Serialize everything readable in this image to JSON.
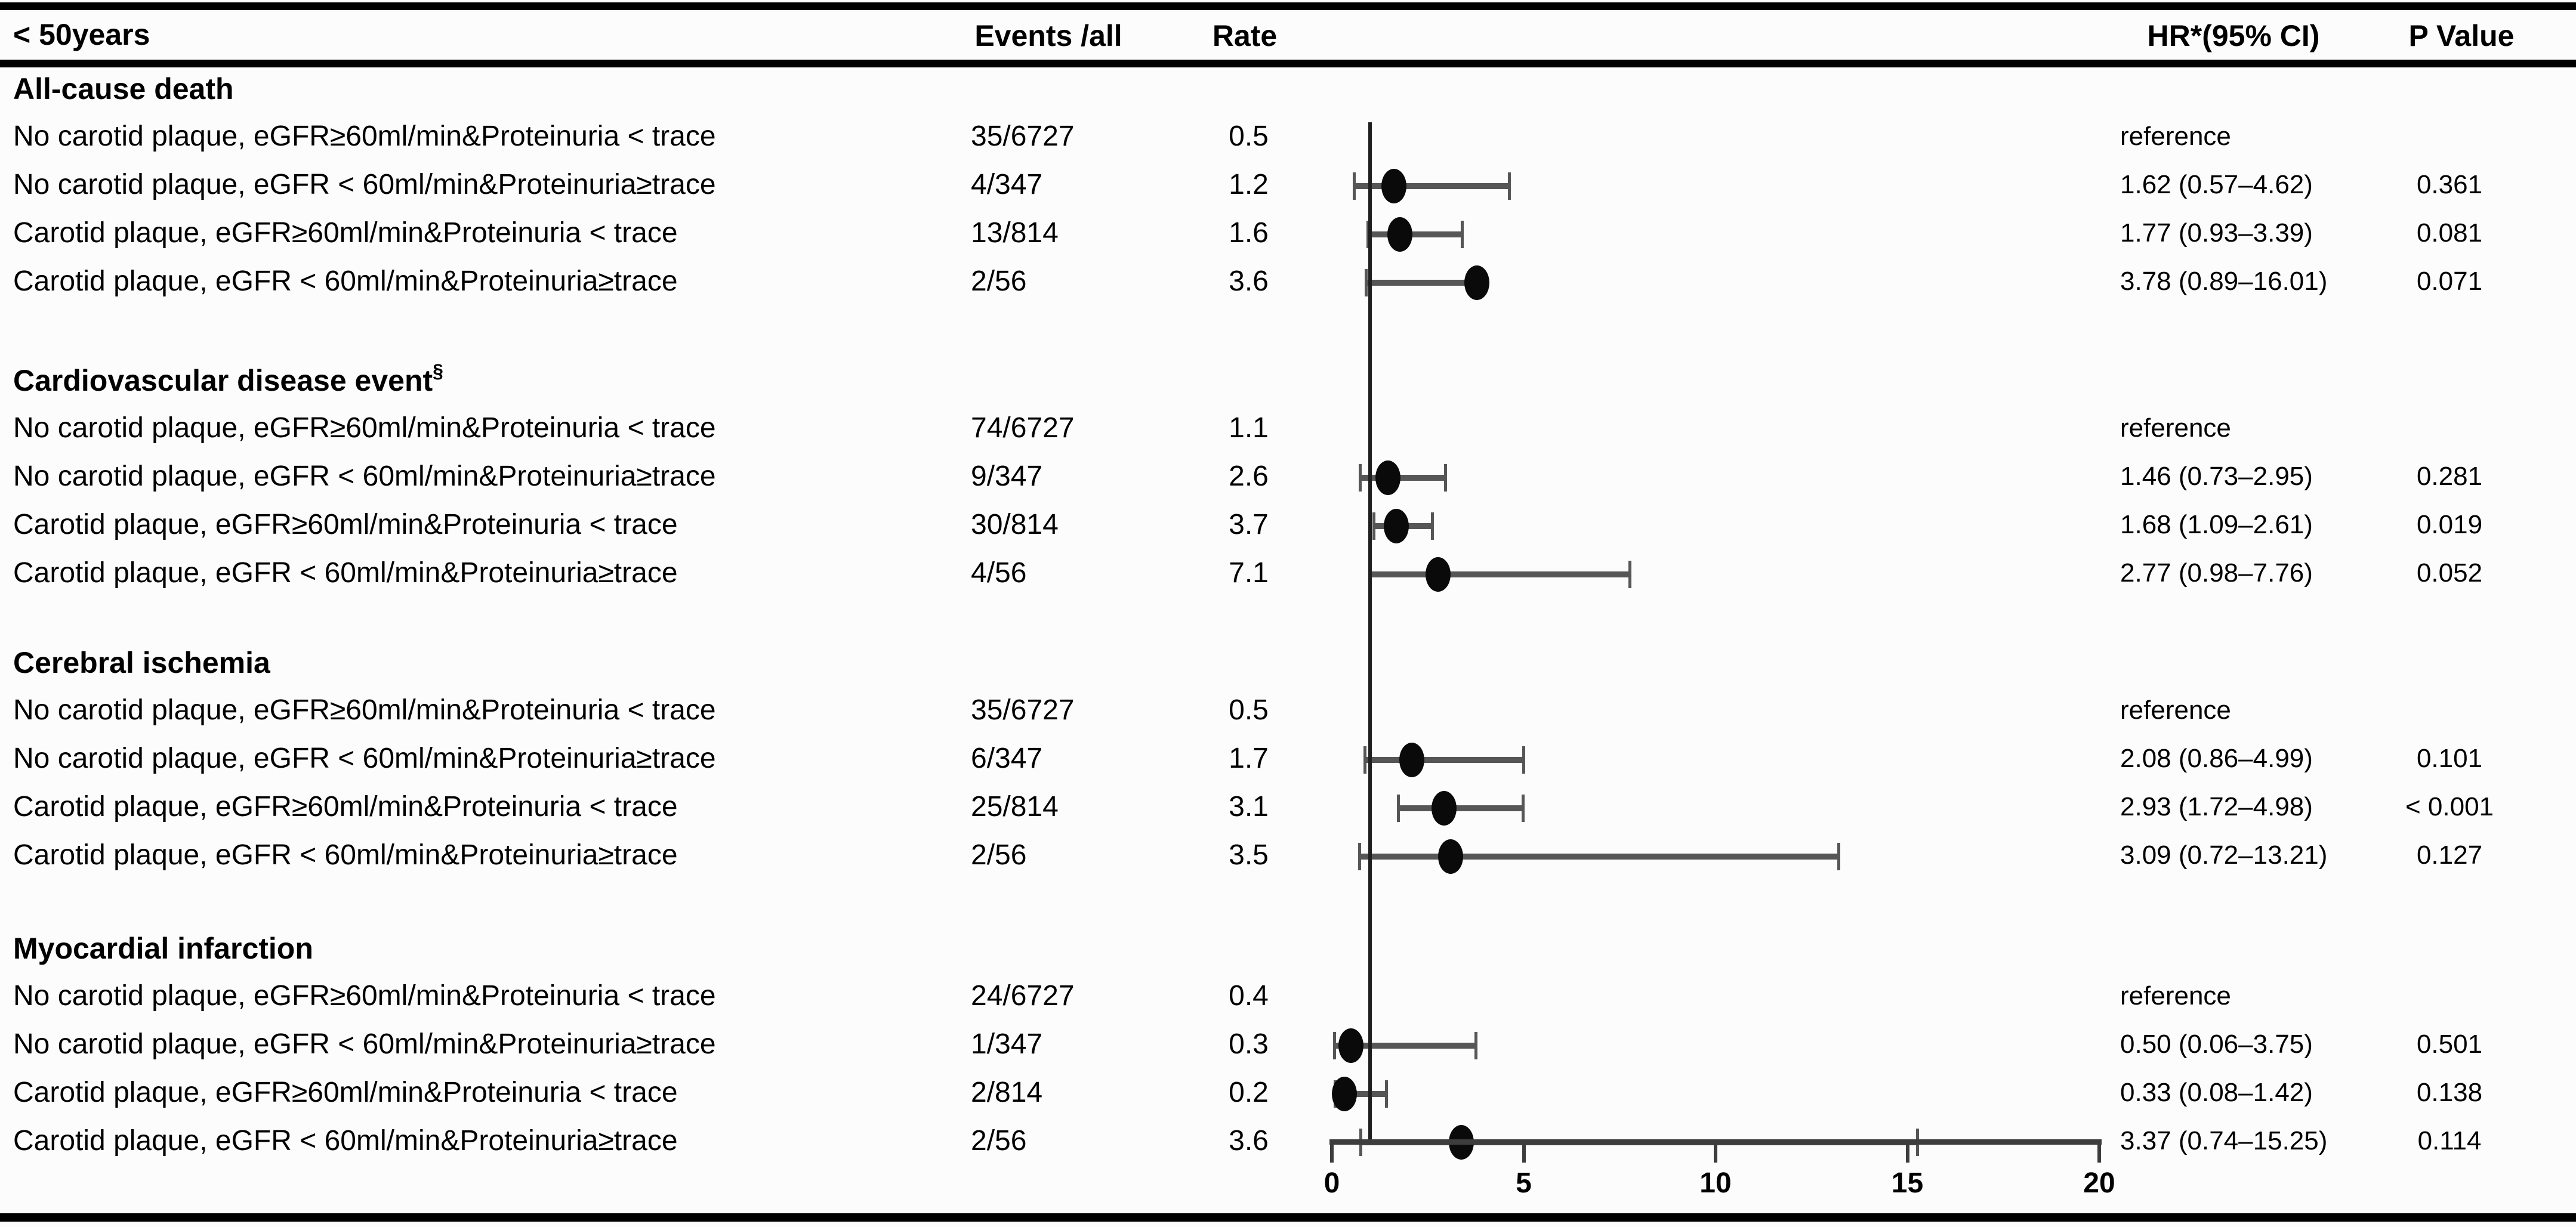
{
  "header": {
    "group_label": "< 50years",
    "events": "Events /all",
    "rate": "Rate",
    "hr": "HR*(95% CI)",
    "p": "P Value"
  },
  "colors": {
    "marker": "#0a0a0a",
    "ci_bar": "#565656",
    "axis": "#3d3d3d",
    "reference_line": "#1f1f1f",
    "rule": "#000000",
    "background": "#fcfcfc",
    "text": "#000000"
  },
  "chart_data": {
    "type": "scatter",
    "subtype": "forest-plot",
    "title": "< 50years",
    "xlabel": "",
    "ylabel": "",
    "x_axis": {
      "min": 0,
      "max": 20,
      "ticks": [
        0,
        5,
        10,
        15,
        20
      ],
      "reference_line_x": 1,
      "grid": false
    },
    "sections": [
      {
        "title": "All-cause death",
        "sup": "",
        "rows": [
          {
            "label": "No carotid plaque, eGFR≥60ml/min&Proteinuria < trace",
            "events_all": "35/6727",
            "rate": "0.5",
            "hr_text": "reference",
            "p": "",
            "hr": null,
            "lo": null,
            "hi": null
          },
          {
            "label": "No carotid plaque, eGFR < 60ml/min&Proteinuria≥trace",
            "events_all": "4/347",
            "rate": "1.2",
            "hr_text": "1.62 (0.57–4.62)",
            "p": "0.361",
            "hr": 1.62,
            "lo": 0.57,
            "hi": 4.62
          },
          {
            "label": "Carotid plaque, eGFR≥60ml/min&Proteinuria < trace",
            "events_all": "13/814",
            "rate": "1.6",
            "hr_text": "1.77 (0.93–3.39)",
            "p": "0.081",
            "hr": 1.77,
            "lo": 0.93,
            "hi": 3.39
          },
          {
            "label": "Carotid plaque, eGFR < 60ml/min&Proteinuria≥trace",
            "events_all": "2/56",
            "rate": "3.6",
            "hr_text": "3.78 (0.89–16.01)",
            "p": "0.071",
            "hr": 3.78,
            "lo": 0.89,
            "hi": 16.01,
            "hi_whisker_drawn": false
          }
        ]
      },
      {
        "title": "Cardiovascular disease event",
        "sup": "§",
        "rows": [
          {
            "label": "No carotid plaque, eGFR≥60ml/min&Proteinuria < trace",
            "events_all": "74/6727",
            "rate": "1.1",
            "hr_text": "reference",
            "p": "",
            "hr": null,
            "lo": null,
            "hi": null
          },
          {
            "label": "No carotid plaque, eGFR < 60ml/min&Proteinuria≥trace",
            "events_all": "9/347",
            "rate": "2.6",
            "hr_text": "1.46 (0.73–2.95)",
            "p": "0.281",
            "hr": 1.46,
            "lo": 0.73,
            "hi": 2.95
          },
          {
            "label": "Carotid plaque, eGFR≥60ml/min&Proteinuria < trace",
            "events_all": "30/814",
            "rate": "3.7",
            "hr_text": "1.68 (1.09–2.61)",
            "p": "0.019",
            "hr": 1.68,
            "lo": 1.09,
            "hi": 2.61
          },
          {
            "label": "Carotid plaque, eGFR < 60ml/min&Proteinuria≥trace",
            "events_all": "4/56",
            "rate": "7.1",
            "hr_text": "2.77 (0.98–7.76)",
            "p": "0.052",
            "hr": 2.77,
            "lo": 0.98,
            "hi": 7.76
          }
        ]
      },
      {
        "title": "Cerebral ischemia",
        "sup": "",
        "rows": [
          {
            "label": "No carotid plaque, eGFR≥60ml/min&Proteinuria < trace",
            "events_all": "35/6727",
            "rate": "0.5",
            "hr_text": "reference",
            "p": "",
            "hr": null,
            "lo": null,
            "hi": null
          },
          {
            "label": "No carotid plaque, eGFR < 60ml/min&Proteinuria≥trace",
            "events_all": "6/347",
            "rate": "1.7",
            "hr_text": "2.08 (0.86–4.99)",
            "p": "0.101",
            "hr": 2.08,
            "lo": 0.86,
            "hi": 4.99
          },
          {
            "label": "Carotid plaque, eGFR≥60ml/min&Proteinuria < trace",
            "events_all": "25/814",
            "rate": "3.1",
            "hr_text": "2.93 (1.72–4.98)",
            "p": "< 0.001",
            "hr": 2.93,
            "lo": 1.72,
            "hi": 4.98
          },
          {
            "label": "Carotid plaque, eGFR < 60ml/min&Proteinuria≥trace",
            "events_all": "2/56",
            "rate": "3.5",
            "hr_text": "3.09 (0.72–13.21)",
            "p": "0.127",
            "hr": 3.09,
            "lo": 0.72,
            "hi": 13.21
          }
        ]
      },
      {
        "title": "Myocardial infarction",
        "sup": "",
        "rows": [
          {
            "label": "No carotid plaque, eGFR≥60ml/min&Proteinuria < trace",
            "events_all": "24/6727",
            "rate": "0.4",
            "hr_text": "reference",
            "p": "",
            "hr": null,
            "lo": null,
            "hi": null
          },
          {
            "label": "No carotid plaque, eGFR < 60ml/min&Proteinuria≥trace",
            "events_all": "1/347",
            "rate": "0.3",
            "hr_text": "0.50 (0.06–3.75)",
            "p": "0.501",
            "hr": 0.5,
            "lo": 0.06,
            "hi": 3.75
          },
          {
            "label": "Carotid plaque, eGFR≥60ml/min&Proteinuria < trace",
            "events_all": "2/814",
            "rate": "0.2",
            "hr_text": "0.33 (0.08–1.42)",
            "p": "0.138",
            "hr": 0.33,
            "lo": 0.08,
            "hi": 1.42
          },
          {
            "label": "Carotid plaque, eGFR < 60ml/min&Proteinuria≥trace",
            "events_all": "2/56",
            "rate": "3.6",
            "hr_text": "3.37 (0.74–15.25)",
            "p": "0.114",
            "hr": 3.37,
            "lo": 0.74,
            "hi": 15.25
          }
        ]
      }
    ]
  }
}
